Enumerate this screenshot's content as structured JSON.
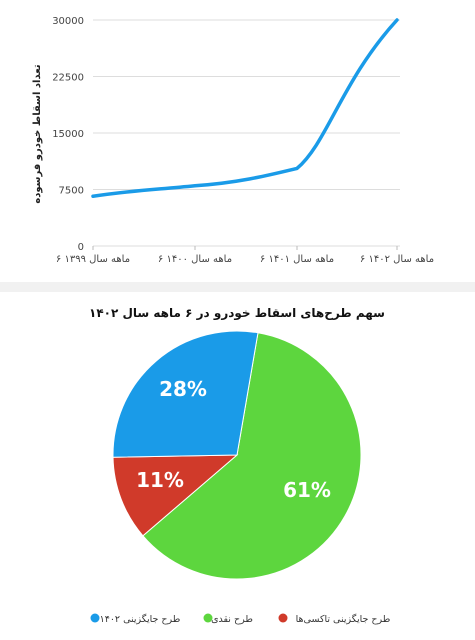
{
  "chart_data": [
    {
      "type": "line",
      "title": "",
      "ylabel": "تعداد اسقاط خودرو فرسوده",
      "xlabel": "",
      "x": [
        "۶ ماهه سال ۱۳۹۹",
        "۶ ماهه سال ۱۴۰۰",
        "۶ ماهه سال ۱۴۰۱",
        "۶ ماهه سال ۱۴۰۲"
      ],
      "series": [
        {
          "values": [
            6600,
            8000,
            10300,
            30000
          ],
          "color": "#1a9be8"
        }
      ],
      "y_ticks": [
        "0",
        "7500",
        "15000",
        "22500",
        "30000"
      ],
      "ylim": [
        0,
        30000
      ],
      "grid": true
    },
    {
      "type": "pie",
      "title": "سهم طرح‌های اسقاط خودرو در ۶ ماهه سال ۱۴۰۲",
      "slices": [
        {
          "name": "طرح جایگزینی ۱۴۰۲",
          "value": 28,
          "label": "28%",
          "color": "#1a9be8"
        },
        {
          "name": "طرح نقدی",
          "value": 61,
          "label": "61%",
          "color": "#5dd63e"
        },
        {
          "name": "طرح جایگزینی تاکسی‌ها",
          "value": 11,
          "label": "11%",
          "color": "#d03a2a"
        }
      ],
      "legend_position": "bottom"
    }
  ]
}
